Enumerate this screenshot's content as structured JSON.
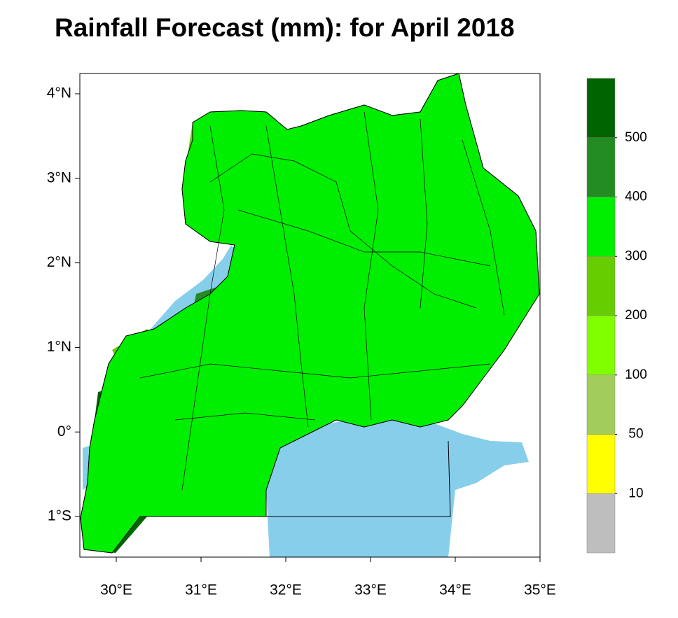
{
  "title": "Rainfall Forecast (mm): for April 2018",
  "map": {
    "xlim": [
      29.57,
      35
    ],
    "ylim": [
      -1.48,
      4.24
    ],
    "xticks": [
      {
        "value": 30,
        "label": "30°E"
      },
      {
        "value": 31,
        "label": "31°E"
      },
      {
        "value": 32,
        "label": "32°E"
      },
      {
        "value": 33,
        "label": "33°E"
      },
      {
        "value": 34,
        "label": "34°E"
      },
      {
        "value": 35,
        "label": "35°E"
      }
    ],
    "yticks": [
      {
        "value": -1,
        "label": "1°S"
      },
      {
        "value": 0,
        "label": "0°"
      },
      {
        "value": 1,
        "label": "1°N"
      },
      {
        "value": 2,
        "label": "2°N"
      },
      {
        "value": 3,
        "label": "3°N"
      },
      {
        "value": 4,
        "label": "4°N"
      }
    ]
  },
  "colorbar": {
    "levels": [
      10,
      50,
      100,
      200,
      300,
      400,
      500
    ],
    "colors": [
      "#bebebe",
      "#ffff00",
      "#a2cd5a",
      "#7fff00",
      "#66cd00",
      "#00ee00",
      "#228b22",
      "#006400"
    ]
  }
}
